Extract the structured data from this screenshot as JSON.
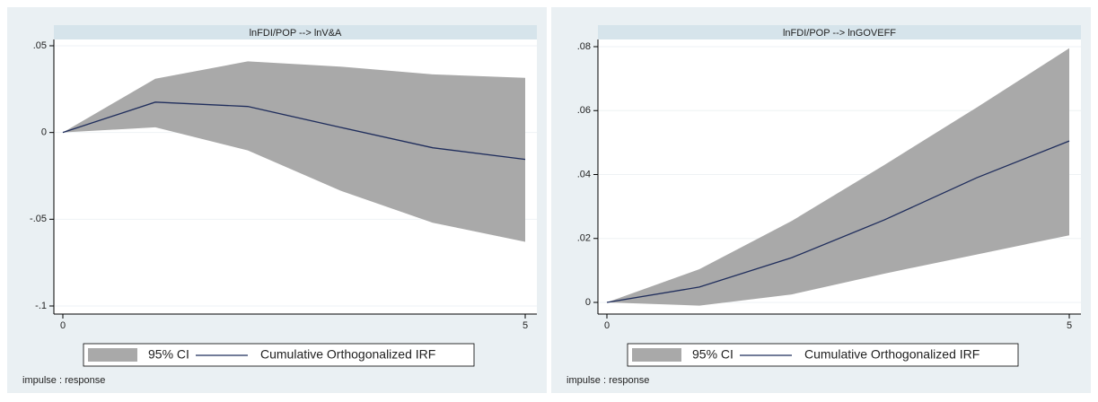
{
  "chart_data": [
    {
      "type": "line",
      "title": "lnFDI/POP --> lnV&A",
      "x": [
        0,
        1,
        2,
        3,
        4,
        5
      ],
      "xlim": [
        0,
        5
      ],
      "xticks": [
        0,
        5
      ],
      "ylim": [
        -0.1,
        0.05
      ],
      "yticks": [
        {
          "value": 0.05,
          "label": ".05"
        },
        0,
        {
          "value": -0.05,
          "label": "-.05"
        },
        {
          "value": -0.1,
          "label": "-.1"
        }
      ],
      "grid": true,
      "band": {
        "name": "95% CI",
        "color": "#a9a9a9",
        "upper": [
          0,
          0.031,
          0.041,
          0.038,
          0.0335,
          0.0315
        ],
        "lower": [
          0,
          0.003,
          -0.0103,
          -0.0335,
          -0.052,
          -0.063
        ]
      },
      "series": [
        {
          "name": "Cumulative Orthogonalized IRF",
          "color": "#1f2d5c",
          "values": [
            0,
            0.0175,
            0.015,
            0.003,
            -0.0088,
            -0.0155
          ]
        }
      ],
      "note": "impulse : response"
    },
    {
      "type": "line",
      "title": "lnFDI/POP --> lnGOVEFF",
      "x": [
        0,
        1,
        2,
        3,
        4,
        5
      ],
      "xlim": [
        0,
        5
      ],
      "xticks": [
        0,
        5
      ],
      "ylim": [
        0,
        0.08
      ],
      "yticks": [
        {
          "value": 0.08,
          "label": ".08"
        },
        {
          "value": 0.06,
          "label": ".06"
        },
        {
          "value": 0.04,
          "label": ".04"
        },
        {
          "value": 0.02,
          "label": ".02"
        },
        0
      ],
      "grid": true,
      "band": {
        "name": "95% CI",
        "color": "#a9a9a9",
        "upper": [
          0,
          0.0104,
          0.0255,
          0.043,
          0.061,
          0.0795
        ],
        "lower": [
          0,
          -0.001,
          0.0025,
          0.009,
          0.015,
          0.021
        ]
      },
      "series": [
        {
          "name": "Cumulative Orthogonalized IRF",
          "color": "#1f2d5c",
          "values": [
            0,
            0.0048,
            0.014,
            0.0258,
            0.039,
            0.0505
          ]
        }
      ],
      "note": "impulse : response"
    }
  ]
}
